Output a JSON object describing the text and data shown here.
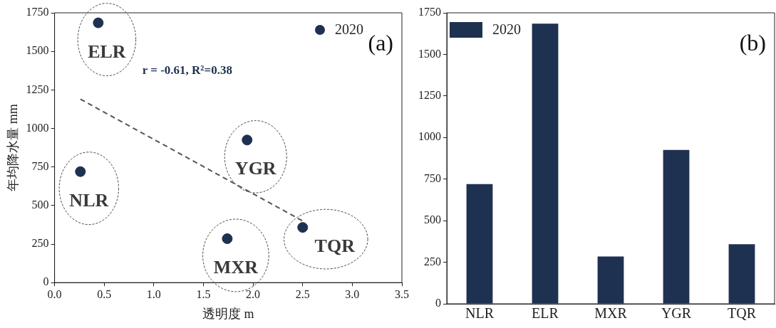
{
  "chart_data": [
    {
      "type": "scatter",
      "xlabel": "透明度 m",
      "ylabel": "年均降水量 mm",
      "xlim": [
        0,
        3.5
      ],
      "xticks": [
        {
          "value": 0,
          "label": "0.0"
        },
        0.5,
        {
          "value": 1,
          "label": "1.0"
        },
        1.5,
        {
          "value": 2,
          "label": "2.0"
        },
        2.5,
        {
          "value": 3,
          "label": "3.0"
        },
        3.5
      ],
      "ylim": [
        0,
        1750
      ],
      "yticks": [
        0,
        250,
        500,
        750,
        1000,
        1250,
        1500,
        1750
      ],
      "grid": false,
      "legend": "top right",
      "marker": "circle",
      "series": [
        {
          "name": "2020",
          "color": "#1f3150",
          "x": [
            0.26,
            0.44,
            1.74,
            1.94,
            2.5
          ],
          "values": [
            720,
            1685,
            285,
            925,
            358
          ]
        },
        {
          "type": "line",
          "marker": "none",
          "color": "#555555",
          "line_style": "dashed",
          "x": [
            0.26,
            2.5
          ],
          "values": [
            1190,
            400
          ]
        }
      ],
      "annotations": [
        "(a)",
        {
          "text": "ELR",
          "x": 0.44,
          "y": 1685
        },
        {
          "text": "NLR",
          "x": 0.26,
          "y": 720
        },
        {
          "text": "YGR",
          "x": 1.94,
          "y": 925
        },
        {
          "text": "MXR",
          "x": 1.74,
          "y": 285
        },
        {
          "text": "TQR",
          "x": 2.5,
          "y": 358
        },
        "r = -0.61, R²=0.38"
      ]
    },
    {
      "type": "bar",
      "categories": [
        "NLR",
        "ELR",
        "MXR",
        "YGR",
        "TQR"
      ],
      "ylim": [
        0,
        1750
      ],
      "yticks": [
        0,
        250,
        500,
        750,
        1000,
        1250,
        1500,
        1750
      ],
      "grid": false,
      "legend": "top left",
      "series": [
        {
          "name": "2020",
          "color": "#1f3150",
          "values": [
            720,
            1685,
            285,
            925,
            358
          ]
        }
      ],
      "annotations": [
        "(b)"
      ]
    }
  ]
}
